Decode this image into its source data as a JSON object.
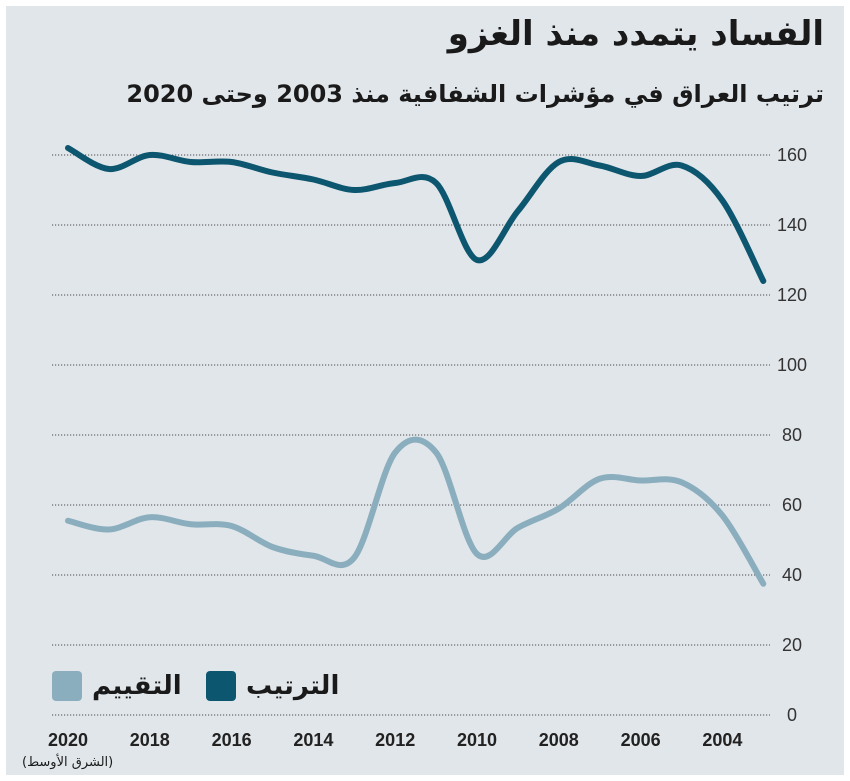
{
  "title": "الفساد يتمدد منذ الغزو",
  "subtitle": "ترتيب العراق في مؤشرات الشفافية منذ 2003 وحتى 2020",
  "source": "(الشرق الأوسط)",
  "colors": {
    "background": "#e1e6ea",
    "rank": "#0d566f",
    "score": "#8aaebd",
    "grid": "#1a1a1a",
    "text": "#1a1a1a"
  },
  "chart_data": {
    "type": "line",
    "title": "الفساد يتمدد منذ الغزو",
    "subtitle": "ترتيب العراق في مؤشرات الشفافية منذ 2003 وحتى 2020",
    "x": [
      2020,
      2019,
      2018,
      2017,
      2016,
      2015,
      2014,
      2013,
      2012,
      2011,
      2010,
      2009,
      2008,
      2007,
      2006,
      2005,
      2004,
      2003
    ],
    "x_ticks": [
      "2020",
      "2018",
      "2016",
      "2014",
      "2012",
      "2010",
      "2008",
      "2006",
      "2004"
    ],
    "x_direction": "reversed",
    "ylim": [
      0,
      160
    ],
    "y_ticks": [
      0,
      20,
      40,
      60,
      80,
      100,
      120,
      140,
      160
    ],
    "y_axis_side": "right",
    "grid": true,
    "legend_placement": "bottom-left",
    "series": [
      {
        "name": "الترتيب",
        "color": "#0d566f",
        "values": [
          162,
          156,
          160,
          158,
          158,
          155,
          153,
          150,
          152,
          152,
          130,
          144,
          158,
          157,
          154,
          157,
          147,
          124
        ]
      },
      {
        "name": "التقييم",
        "color": "#8aaebd",
        "values": [
          55.5,
          53,
          56.5,
          54.5,
          54,
          48,
          45.5,
          45,
          75,
          75,
          46,
          53.5,
          59,
          67.5,
          67,
          66.5,
          57,
          37.5
        ]
      }
    ]
  }
}
